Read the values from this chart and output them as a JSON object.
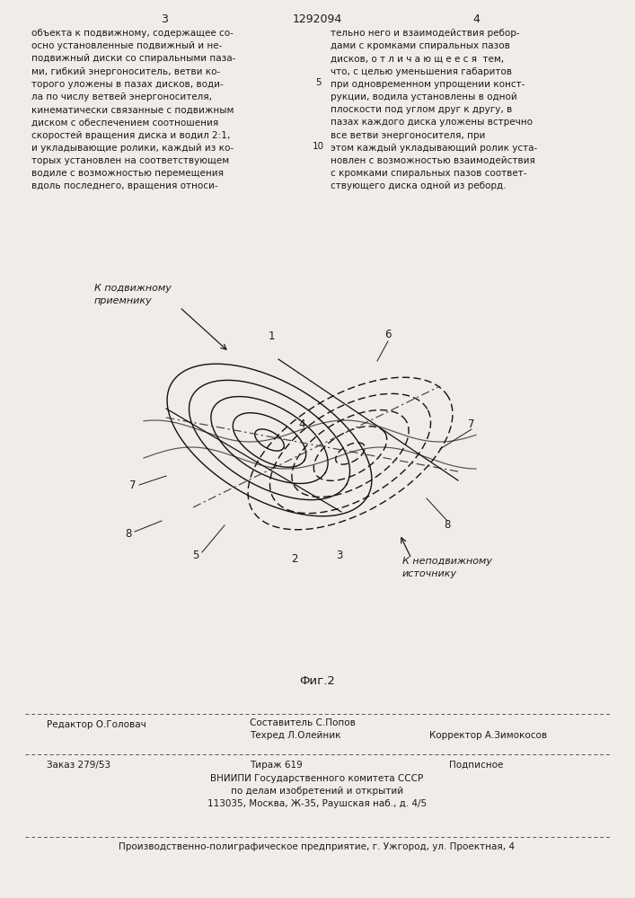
{
  "page_number_left": "3",
  "page_number_center": "1292094",
  "page_number_right": "4",
  "col_left_text": [
    "объекта к подвижному, содержащее со-",
    "осно установленные подвижный и не-",
    "подвижный диски со спиральными паза-",
    "ми, гибкий энергоноситель, ветви ко-",
    "торого уложены в пазах дисков, води-",
    "ла по числу ветвей энергоносителя,",
    "кинематически связанные с подвижным",
    "диском с обеспечением соотношения",
    "скоростей вращения диска и водил 2:1,",
    "и укладывающие ролики, каждый из ко-",
    "торых установлен на соответствующем",
    "водиле с возможностью перемещения",
    "вдоль последнего, вращения относи-"
  ],
  "col_right_text": [
    "тельно него и взаимодействия ребор-",
    "дами с кромками спиральных пазов",
    "дисков, о т л и ч а ю щ е е с я  тем,",
    "что, с целью уменьшения габаритов",
    "при одновременном упрощении конст-",
    "рукции, водила установлены в одной",
    "плоскости под углом друг к другу, в",
    "пазах каждого диска уложены встречно",
    "все ветви энергоносителя, при",
    "этом каждый укладывающий ролик уста-",
    "новлен с возможностью взаимодействия",
    "с кромками спиральных пазов соответ-",
    "ствующего диска одной из реборд."
  ],
  "line_number_5": "5",
  "line_number_10": "10",
  "fig_label": "Фиг.2",
  "diagram_label_top": "К подвижному\nприемнику",
  "diagram_label_bottom": "К неподвижному\nисточнику",
  "footer_editor": "Редактор О.Головач",
  "footer_composer": "Составитель С.Попов",
  "footer_techred": "Техред Л.Олейник",
  "footer_corrector": "Корректор А.Зимокосов",
  "footer_order": "Заказ 279/53",
  "footer_tirazh": "Тираж 619",
  "footer_podpisnoe": "Подписное",
  "footer_vniiipi": "ВНИИПИ Государственного комитета СССР",
  "footer_po_delam": "по делам изобретений и открытий",
  "footer_address": "113035, Москва, Ж-35, Раушская наб., д. 4/5",
  "footer_production": "Производственно-полиграфическое предприятие, г. Ужгород, ул. Проектная, 4",
  "background_color": "#f0ede8",
  "text_color": "#1a1a1a"
}
